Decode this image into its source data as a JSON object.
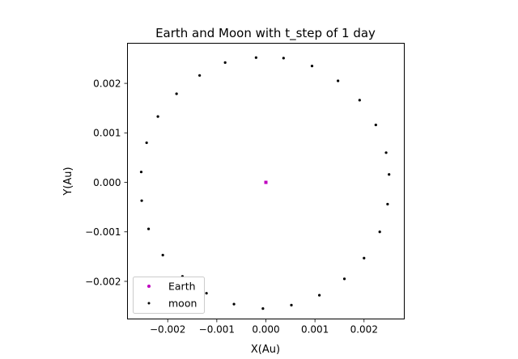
{
  "chart_data": {
    "type": "scatter",
    "title": "Earth and Moon with t_step of 1 day",
    "xlabel": "X(Au)",
    "ylabel": "Y(Au)",
    "xlim": [
      -0.00282,
      0.00282
    ],
    "ylim": [
      -0.00276,
      0.00281
    ],
    "xticks": [
      -0.002,
      -0.001,
      0.0,
      0.001,
      0.002
    ],
    "xtick_labels": [
      "−0.002",
      "−0.001",
      "0.000",
      "0.001",
      "0.002"
    ],
    "yticks": [
      -0.002,
      -0.001,
      0.0,
      0.001,
      0.002
    ],
    "ytick_labels": [
      "−0.002",
      "−0.001",
      "0.000",
      "0.001",
      "0.002"
    ],
    "grid": false,
    "legend_position": "lower-left",
    "series": [
      {
        "name": "Earth",
        "color": "#bf00bf",
        "points": [
          [
            0.0,
            0.0
          ]
        ]
      },
      {
        "name": "moon",
        "color": "#000000",
        "points": [
          [
            -0.0002,
            0.00252
          ],
          [
            0.00036,
            0.00251
          ],
          [
            0.00094,
            0.00235
          ],
          [
            0.00147,
            0.00205
          ],
          [
            0.00191,
            0.00166
          ],
          [
            0.00224,
            0.00116
          ],
          [
            0.00245,
            0.0006
          ],
          [
            0.00251,
            0.00016
          ],
          [
            0.00248,
            -0.00044
          ],
          [
            0.00232,
            -0.001
          ],
          [
            0.002,
            -0.00153
          ],
          [
            0.0016,
            -0.00195
          ],
          [
            0.00109,
            -0.00228
          ],
          [
            0.00052,
            -0.00248
          ],
          [
            -6e-05,
            -0.00255
          ],
          [
            -0.00065,
            -0.00246
          ],
          [
            -0.00121,
            -0.00224
          ],
          [
            -0.0017,
            -0.0019
          ],
          [
            -0.0021,
            -0.00147
          ],
          [
            -0.00239,
            -0.00094
          ],
          [
            -0.00253,
            -0.00037
          ],
          [
            -0.00254,
            0.00021
          ],
          [
            -0.00243,
            0.0008
          ],
          [
            -0.0022,
            0.00133
          ],
          [
            -0.00182,
            0.00179
          ],
          [
            -0.00135,
            0.00216
          ],
          [
            -0.00083,
            0.00242
          ]
        ]
      }
    ]
  }
}
